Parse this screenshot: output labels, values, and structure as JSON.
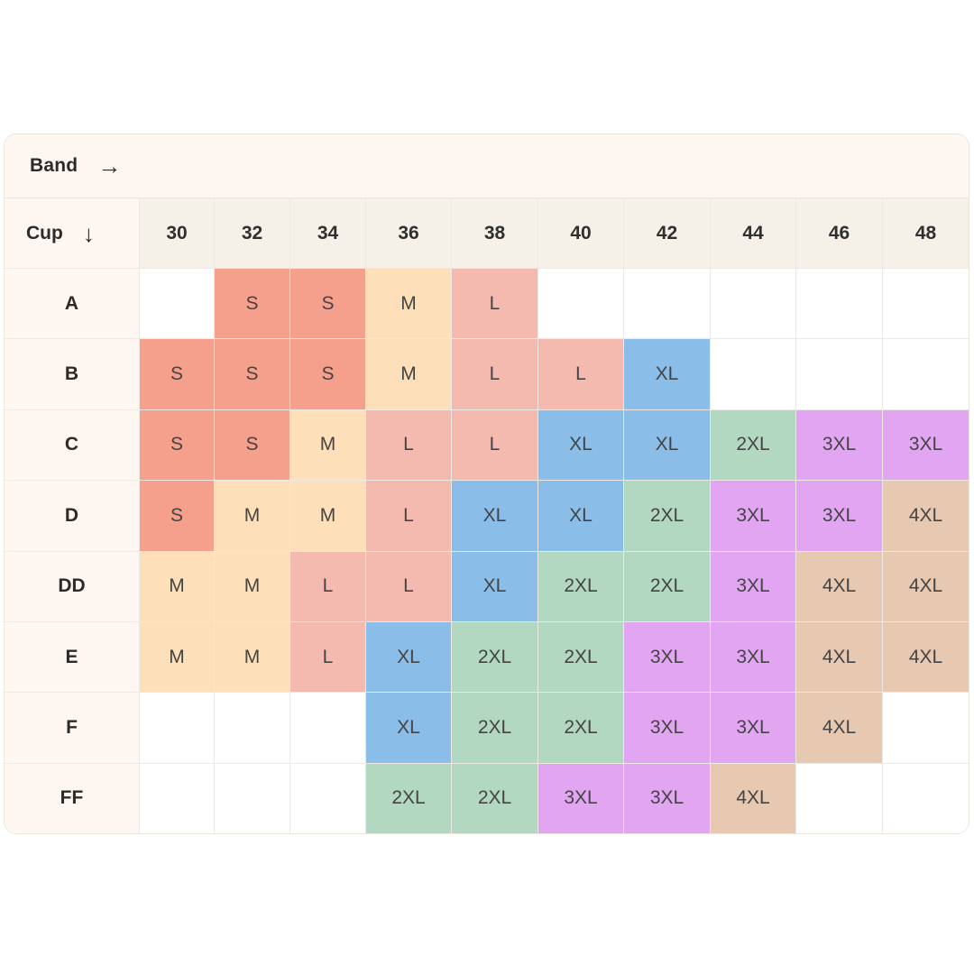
{
  "band_label": "Band",
  "band_arrow": "→",
  "cup_label": "Cup",
  "cup_arrow": "↓",
  "bands": [
    "30",
    "32",
    "34",
    "36",
    "38",
    "40",
    "42",
    "44",
    "46",
    "48"
  ],
  "rows": [
    {
      "cup": "A",
      "sizes": [
        "",
        "S",
        "S",
        "M",
        "L",
        "",
        "",
        "",
        "",
        ""
      ]
    },
    {
      "cup": "B",
      "sizes": [
        "S",
        "S",
        "S",
        "M",
        "L",
        "L",
        "XL",
        "",
        "",
        ""
      ]
    },
    {
      "cup": "C",
      "sizes": [
        "S",
        "S",
        "M",
        "L",
        "L",
        "XL",
        "XL",
        "2XL",
        "3XL",
        "3XL"
      ]
    },
    {
      "cup": "D",
      "sizes": [
        "S",
        "M",
        "M",
        "L",
        "XL",
        "XL",
        "2XL",
        "3XL",
        "3XL",
        "4XL"
      ]
    },
    {
      "cup": "DD",
      "sizes": [
        "M",
        "M",
        "L",
        "L",
        "XL",
        "2XL",
        "2XL",
        "3XL",
        "4XL",
        "4XL"
      ]
    },
    {
      "cup": "E",
      "sizes": [
        "M",
        "M",
        "L",
        "XL",
        "2XL",
        "2XL",
        "3XL",
        "3XL",
        "4XL",
        "4XL"
      ]
    },
    {
      "cup": "F",
      "sizes": [
        "",
        "",
        "",
        "XL",
        "2XL",
        "2XL",
        "3XL",
        "3XL",
        "4XL",
        ""
      ]
    },
    {
      "cup": "FF",
      "sizes": [
        "",
        "",
        "",
        "2XL",
        "2XL",
        "3XL",
        "3XL",
        "4XL",
        "",
        ""
      ]
    }
  ],
  "size_colors": {
    "S": "#f4a08d",
    "M": "#fde0b9",
    "L": "#f4bab0",
    "XL": "#8bbde9",
    "2XL": "#b2d8c1",
    "3XL": "#e2a5f2",
    "4XL": "#e7c8b0"
  }
}
